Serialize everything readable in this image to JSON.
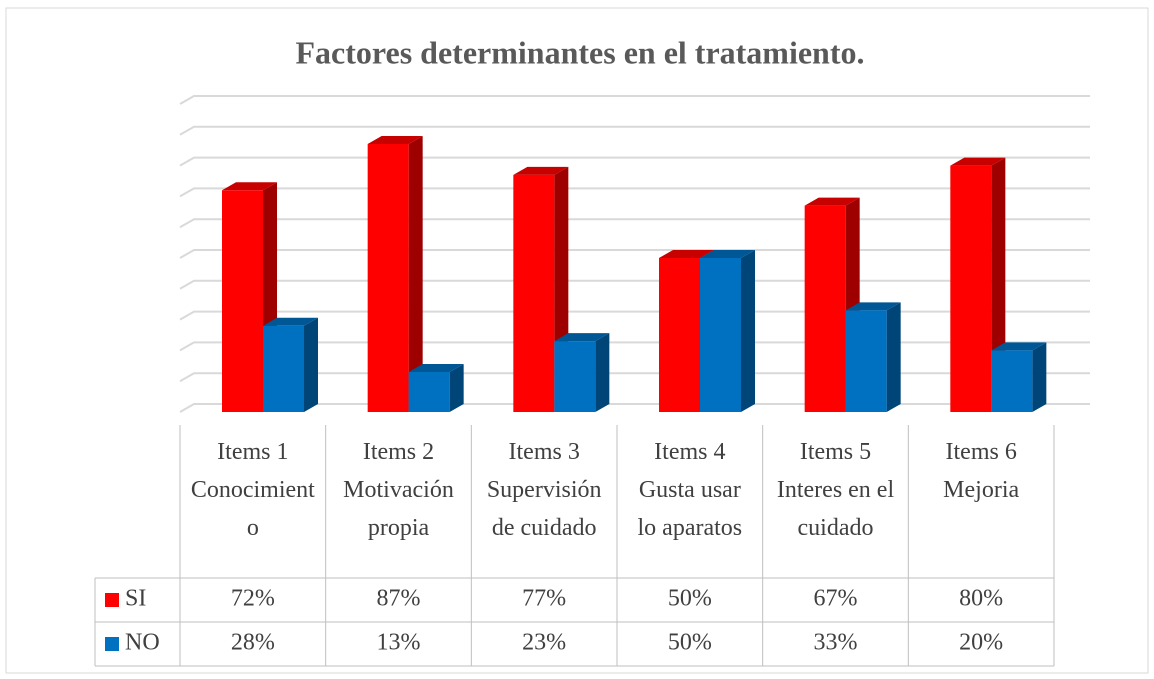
{
  "chart_data": {
    "type": "bar3d",
    "title": "Factores determinantes  en el tratamiento.",
    "categories": [
      "Items 1 Conocimiento",
      "Items 2 Motivación propia",
      "Items 3 Supervisión de cuidado",
      "Items 4 Gusta usar lo aparatos",
      "Items 5 Interes en el cuidado",
      "Items 6 Mejoria"
    ],
    "series": [
      {
        "name": "SI",
        "color": "#ff0000",
        "values": [
          72,
          87,
          77,
          50,
          67,
          80
        ],
        "value_labels": [
          "72%",
          "87%",
          "77%",
          "50%",
          "67%",
          "80%"
        ]
      },
      {
        "name": "NO",
        "color": "#0070c0",
        "values": [
          28,
          13,
          23,
          50,
          33,
          20
        ],
        "value_labels": [
          "28%",
          "13%",
          "23%",
          "50%",
          "33%",
          "20%"
        ]
      }
    ],
    "ylim": [
      0,
      100
    ],
    "yticks": [
      0,
      10,
      20,
      30,
      40,
      50,
      60,
      70,
      80,
      90,
      100
    ],
    "grid": true,
    "data_table": true
  }
}
